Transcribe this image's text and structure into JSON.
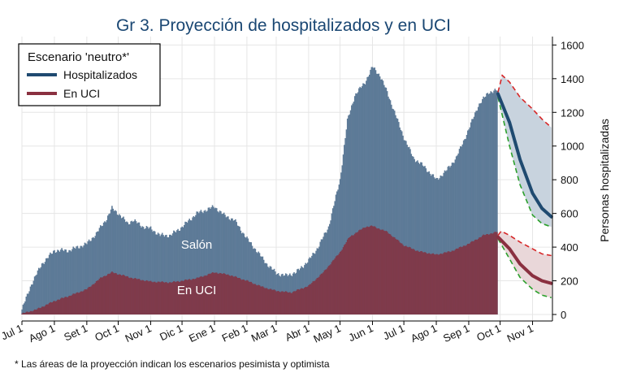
{
  "chart_data": {
    "type": "area",
    "title": "Gr 3. Proyección de hospitalizados y en UCI",
    "ylabel": "Personas hospitalizadas",
    "ylim": [
      0,
      1650
    ],
    "yticks": [
      0,
      200,
      400,
      600,
      800,
      1000,
      1200,
      1400,
      1600
    ],
    "x_axis_kind": "date",
    "xlim": [
      "2020-07-01",
      "2021-11-20"
    ],
    "xticks": [
      {
        "label": "Jul 1",
        "date": "2020-07-01"
      },
      {
        "label": "Ago 1",
        "date": "2020-08-01"
      },
      {
        "label": "Set 1",
        "date": "2020-09-01"
      },
      {
        "label": "Oct 1",
        "date": "2020-10-01"
      },
      {
        "label": "Nov 1",
        "date": "2020-11-01"
      },
      {
        "label": "Dic 1",
        "date": "2020-12-01"
      },
      {
        "label": "Ene 1",
        "date": "2021-01-01"
      },
      {
        "label": "Feb 1",
        "date": "2021-02-01"
      },
      {
        "label": "Mar 1",
        "date": "2021-03-01"
      },
      {
        "label": "Abr 1",
        "date": "2021-04-01"
      },
      {
        "label": "May 1",
        "date": "2021-05-01"
      },
      {
        "label": "Jun 1",
        "date": "2021-06-01"
      },
      {
        "label": "Jul 1",
        "date": "2021-07-01"
      },
      {
        "label": "Ago 1",
        "date": "2021-08-01"
      },
      {
        "label": "Sep 1",
        "date": "2021-09-01"
      },
      {
        "label": "Oct 1",
        "date": "2021-10-01"
      },
      {
        "label": "Nov 1",
        "date": "2021-11-01"
      }
    ],
    "grid": true,
    "legend": {
      "title": "Escenario 'neutro*'",
      "placement": "top-left",
      "items": [
        {
          "name": "Hospitalizados",
          "color": "#1f4a70"
        },
        {
          "name": "En UCI",
          "color": "#8a3040"
        }
      ]
    },
    "area_labels": [
      {
        "text": "Salón",
        "date": "2020-12-15",
        "value": 390
      },
      {
        "text": "En UCI",
        "date": "2020-12-15",
        "value": 120
      }
    ],
    "colors": {
      "salon_fill": "#5d7a97",
      "uci_fill": "#7f3a4b",
      "hosp_line": "#1f4a70",
      "uci_line": "#8a3040",
      "hosp_band": "#c8d3de",
      "uci_band": "#e9d7d9",
      "pessimistic": "#d62728",
      "optimistic": "#2ca02c",
      "title": "#1a4773"
    },
    "series": [
      {
        "name": "Hospitalizados",
        "kind": "observed_total",
        "points": [
          [
            "2020-07-01",
            30
          ],
          [
            "2020-07-10",
            180
          ],
          [
            "2020-07-20",
            300
          ],
          [
            "2020-08-01",
            380
          ],
          [
            "2020-08-15",
            380
          ],
          [
            "2020-09-01",
            420
          ],
          [
            "2020-09-10",
            480
          ],
          [
            "2020-09-20",
            570
          ],
          [
            "2020-09-25",
            630
          ],
          [
            "2020-10-01",
            600
          ],
          [
            "2020-10-10",
            540
          ],
          [
            "2020-10-15",
            560
          ],
          [
            "2020-10-25",
            520
          ],
          [
            "2020-11-01",
            510
          ],
          [
            "2020-11-10",
            470
          ],
          [
            "2020-11-20",
            470
          ],
          [
            "2020-12-01",
            520
          ],
          [
            "2020-12-15",
            600
          ],
          [
            "2021-01-01",
            640
          ],
          [
            "2021-01-10",
            590
          ],
          [
            "2021-01-20",
            560
          ],
          [
            "2021-02-01",
            450
          ],
          [
            "2021-02-10",
            380
          ],
          [
            "2021-02-20",
            300
          ],
          [
            "2021-03-01",
            245
          ],
          [
            "2021-03-10",
            230
          ],
          [
            "2021-03-20",
            250
          ],
          [
            "2021-04-01",
            320
          ],
          [
            "2021-04-10",
            400
          ],
          [
            "2021-04-20",
            520
          ],
          [
            "2021-05-01",
            800
          ],
          [
            "2021-05-08",
            1150
          ],
          [
            "2021-05-15",
            1300
          ],
          [
            "2021-05-25",
            1380
          ],
          [
            "2021-06-01",
            1470
          ],
          [
            "2021-06-08",
            1420
          ],
          [
            "2021-06-15",
            1320
          ],
          [
            "2021-06-25",
            1150
          ],
          [
            "2021-07-01",
            1050
          ],
          [
            "2021-07-10",
            930
          ],
          [
            "2021-07-20",
            880
          ],
          [
            "2021-08-01",
            800
          ],
          [
            "2021-08-10",
            850
          ],
          [
            "2021-08-20",
            930
          ],
          [
            "2021-09-01",
            1100
          ],
          [
            "2021-09-10",
            1240
          ],
          [
            "2021-09-20",
            1320
          ],
          [
            "2021-09-28",
            1330
          ]
        ]
      },
      {
        "name": "En UCI",
        "kind": "observed",
        "points": [
          [
            "2020-07-01",
            5
          ],
          [
            "2020-07-15",
            30
          ],
          [
            "2020-08-01",
            80
          ],
          [
            "2020-08-15",
            110
          ],
          [
            "2020-09-01",
            150
          ],
          [
            "2020-09-15",
            220
          ],
          [
            "2020-09-25",
            250
          ],
          [
            "2020-10-01",
            240
          ],
          [
            "2020-10-15",
            215
          ],
          [
            "2020-11-01",
            195
          ],
          [
            "2020-11-20",
            190
          ],
          [
            "2020-12-01",
            200
          ],
          [
            "2020-12-15",
            215
          ],
          [
            "2021-01-01",
            250
          ],
          [
            "2021-01-15",
            235
          ],
          [
            "2021-02-01",
            200
          ],
          [
            "2021-02-15",
            165
          ],
          [
            "2021-03-01",
            140
          ],
          [
            "2021-03-15",
            130
          ],
          [
            "2021-04-01",
            170
          ],
          [
            "2021-04-15",
            250
          ],
          [
            "2021-05-01",
            370
          ],
          [
            "2021-05-10",
            460
          ],
          [
            "2021-05-25",
            520
          ],
          [
            "2021-06-01",
            525
          ],
          [
            "2021-06-15",
            490
          ],
          [
            "2021-07-01",
            410
          ],
          [
            "2021-07-15",
            375
          ],
          [
            "2021-08-01",
            355
          ],
          [
            "2021-08-15",
            375
          ],
          [
            "2021-09-01",
            420
          ],
          [
            "2021-09-15",
            470
          ],
          [
            "2021-09-28",
            490
          ]
        ]
      },
      {
        "name": "Hospitalizados",
        "kind": "projection_neutral",
        "points": [
          [
            "2021-09-29",
            1310
          ],
          [
            "2021-10-10",
            1140
          ],
          [
            "2021-10-20",
            920
          ],
          [
            "2021-11-01",
            720
          ],
          [
            "2021-11-10",
            630
          ],
          [
            "2021-11-19",
            580
          ]
        ]
      },
      {
        "name": "Hospitalizados",
        "kind": "projection_pessimistic",
        "points": [
          [
            "2021-09-29",
            1320
          ],
          [
            "2021-10-03",
            1420
          ],
          [
            "2021-10-10",
            1380
          ],
          [
            "2021-10-20",
            1290
          ],
          [
            "2021-11-01",
            1220
          ],
          [
            "2021-11-10",
            1160
          ],
          [
            "2021-11-19",
            1110
          ]
        ]
      },
      {
        "name": "Hospitalizados",
        "kind": "projection_optimistic",
        "points": [
          [
            "2021-09-29",
            1290
          ],
          [
            "2021-10-10",
            1000
          ],
          [
            "2021-10-20",
            770
          ],
          [
            "2021-11-01",
            590
          ],
          [
            "2021-11-10",
            540
          ],
          [
            "2021-11-19",
            520
          ]
        ]
      },
      {
        "name": "En UCI",
        "kind": "projection_neutral",
        "points": [
          [
            "2021-09-29",
            460
          ],
          [
            "2021-10-10",
            390
          ],
          [
            "2021-10-20",
            300
          ],
          [
            "2021-11-01",
            230
          ],
          [
            "2021-11-10",
            200
          ],
          [
            "2021-11-19",
            185
          ]
        ]
      },
      {
        "name": "En UCI",
        "kind": "projection_pessimistic",
        "points": [
          [
            "2021-09-29",
            470
          ],
          [
            "2021-10-02",
            495
          ],
          [
            "2021-10-10",
            470
          ],
          [
            "2021-10-20",
            430
          ],
          [
            "2021-11-01",
            390
          ],
          [
            "2021-11-10",
            360
          ],
          [
            "2021-11-19",
            350
          ]
        ]
      },
      {
        "name": "En UCI",
        "kind": "projection_optimistic",
        "points": [
          [
            "2021-09-29",
            450
          ],
          [
            "2021-10-10",
            330
          ],
          [
            "2021-10-20",
            220
          ],
          [
            "2021-11-01",
            150
          ],
          [
            "2021-11-10",
            115
          ],
          [
            "2021-11-19",
            100
          ]
        ]
      }
    ],
    "footnote": "* Las áreas de la proyección indican los escenarios pesimista y optimista"
  }
}
